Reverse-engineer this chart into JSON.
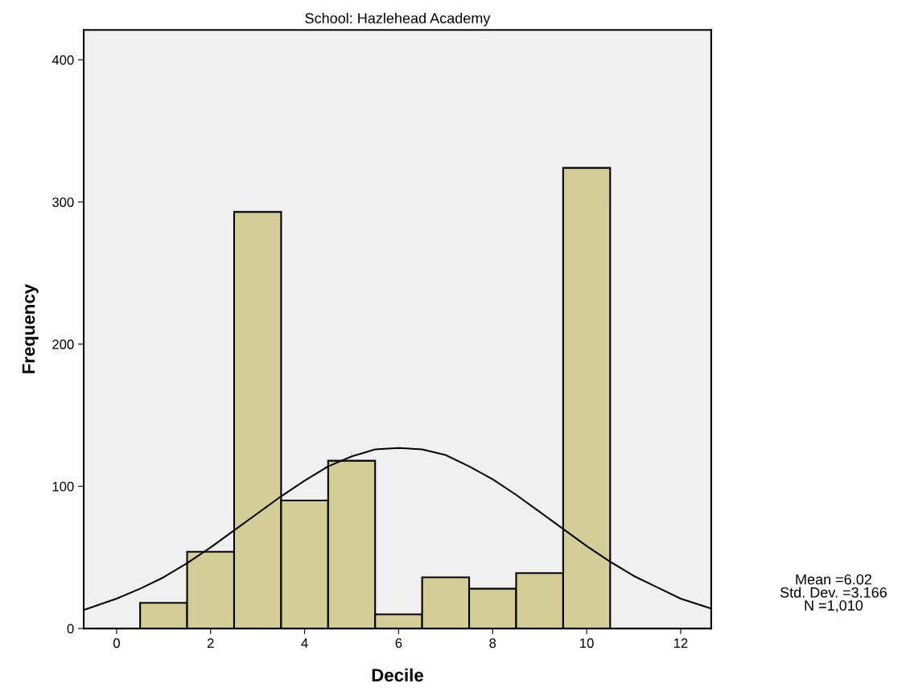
{
  "chart_data": {
    "type": "histogram",
    "title": "School: Hazlehead Academy",
    "xlabel": "Decile",
    "ylabel": "Frequency",
    "bins": [
      0.5,
      1.5,
      2.5,
      3.5,
      4.5,
      5.5,
      6.5,
      7.5,
      8.5,
      9.5,
      10.5
    ],
    "values": [
      18,
      54,
      293,
      90,
      118,
      10,
      36,
      28,
      39,
      324
    ],
    "color": "#d3ce98",
    "series": [
      {
        "type": "line",
        "color": "#000000",
        "x": [
          -0.7,
          0,
          0.5,
          1,
          1.5,
          2,
          2.5,
          3,
          3.5,
          4,
          4.5,
          5,
          5.5,
          6,
          6.5,
          7,
          7.5,
          8,
          8.5,
          9,
          9.5,
          10,
          10.5,
          11,
          11.5,
          12,
          12.65
        ],
        "values": [
          13,
          21,
          28,
          36,
          46,
          57,
          69,
          81,
          93,
          104,
          114,
          121,
          126,
          127,
          126,
          122,
          114,
          105,
          94,
          82,
          70,
          58,
          47,
          37,
          29,
          21,
          14
        ]
      }
    ],
    "xlim": [
      -0.7,
      12.65
    ],
    "ylim": [
      0,
      421
    ],
    "xticks": [
      0,
      2,
      4,
      6,
      8,
      10,
      12
    ],
    "yticks": [
      0,
      100,
      200,
      300,
      400
    ],
    "grid": false,
    "annotations": [
      "Mean =6.02\nStd. Dev. =3.166\nN =1,010"
    ]
  }
}
